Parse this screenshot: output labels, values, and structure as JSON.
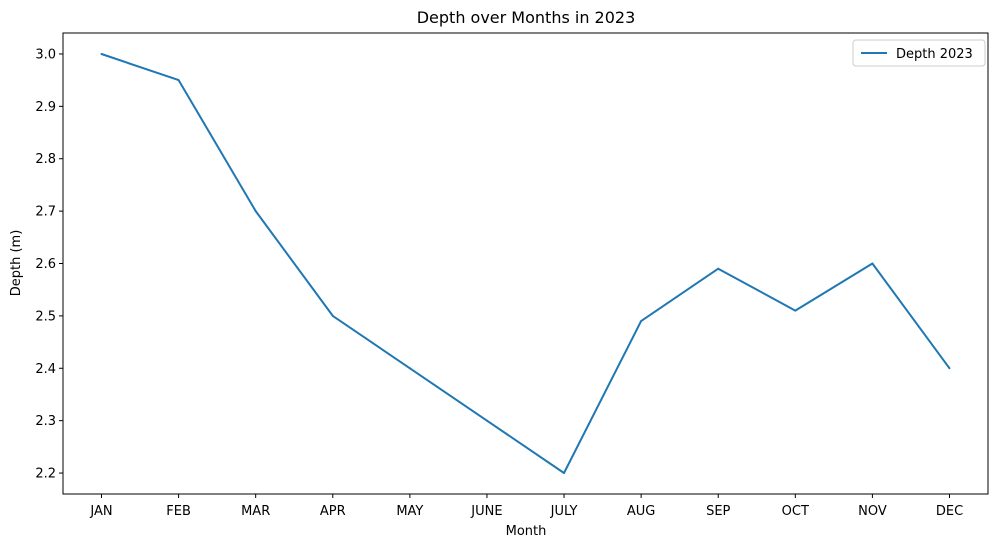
{
  "chart_data": {
    "type": "line",
    "title": "Depth over Months in 2023",
    "xlabel": "Month",
    "ylabel": "Depth (m)",
    "categories": [
      "JAN",
      "FEB",
      "MAR",
      "APR",
      "MAY",
      "JUNE",
      "JULY",
      "AUG",
      "SEP",
      "OCT",
      "NOV",
      "DEC"
    ],
    "series": [
      {
        "name": "Depth 2023",
        "values": [
          3.0,
          2.95,
          2.7,
          2.5,
          2.4,
          2.3,
          2.2,
          2.49,
          2.59,
          2.51,
          2.6,
          2.4
        ],
        "color": "#1f77b4"
      }
    ],
    "yticks": [
      "2.2",
      "2.3",
      "2.4",
      "2.5",
      "2.6",
      "2.7",
      "2.8",
      "2.9",
      "3.0"
    ],
    "ylim": [
      2.16,
      3.04
    ],
    "grid": false,
    "legend_position": "top-right"
  }
}
